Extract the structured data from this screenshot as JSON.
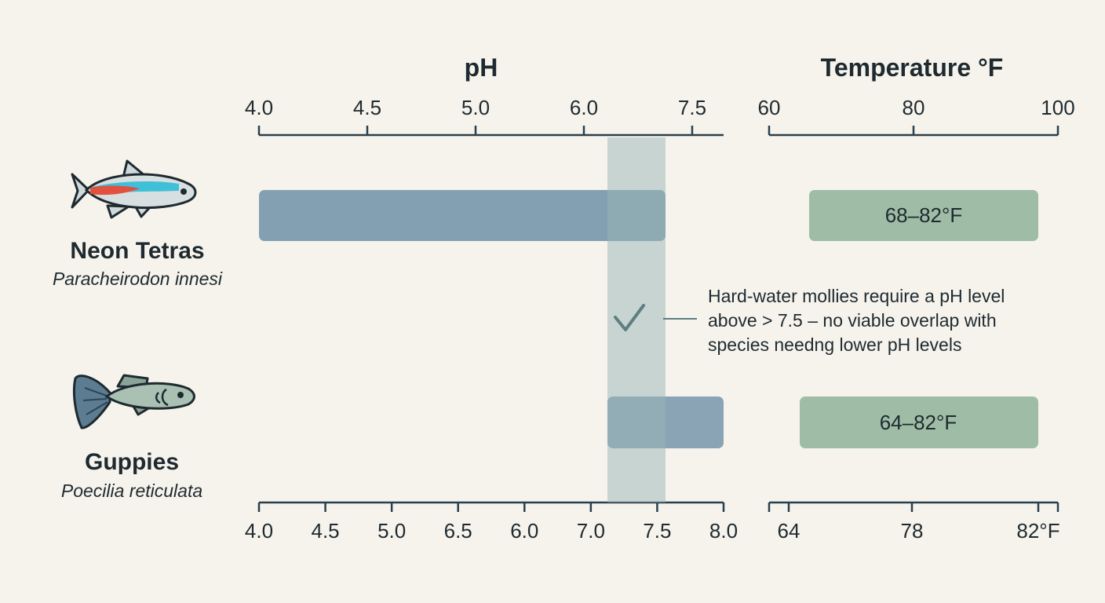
{
  "chart_data": {
    "type": "bar",
    "orientation": "horizontal-range",
    "ph_panel": {
      "title": "pH",
      "top_ticks": [
        "4.0",
        "4.5",
        "5.0",
        "6.0",
        "7.5"
      ],
      "bottom_ticks": [
        "4.0",
        "4.5",
        "5.0",
        "6.5",
        "6.0",
        "7.0",
        "7.5",
        "8.0"
      ],
      "xlim": [
        4.0,
        8.0
      ],
      "overlap_band": [
        7.0,
        7.5
      ]
    },
    "temp_panel": {
      "title": "Temperature °F",
      "top_ticks": [
        "60",
        "80",
        "100"
      ],
      "bottom_ticks": [
        "64",
        "78",
        "82°F"
      ]
    },
    "series": [
      {
        "name": "Neon Tetras",
        "scientific_name": "Paracheirodon innesi",
        "ph_range": [
          4.0,
          7.5
        ],
        "temp_range": [
          68,
          82
        ],
        "temp_label": "68–82°F"
      },
      {
        "name": "Guppies",
        "scientific_name": "Poecilia reticulata",
        "ph_range": [
          7.0,
          8.0
        ],
        "temp_range": [
          64,
          82
        ],
        "temp_label": "64–82°F"
      }
    ],
    "annotation": {
      "lines": [
        "Hard-water mollies require a pH level",
        "above > 7.5 – no viable overlap with",
        "species needng lower pH levels"
      ]
    },
    "grid": false,
    "legend": "none"
  },
  "colors": {
    "background": "#f6f3ec",
    "ph_bar": "#6f90a8",
    "temp_bar": "#8fb39a",
    "overlap_band": "#9ab6b5",
    "axis": "#2a3f4c",
    "check": "#5e7f80",
    "tetra_stripe_blue": "#3fc0d8",
    "tetra_stripe_red": "#e0523f",
    "guppy_body": "#8aa49a",
    "guppy_tail": "#5c7c92"
  }
}
